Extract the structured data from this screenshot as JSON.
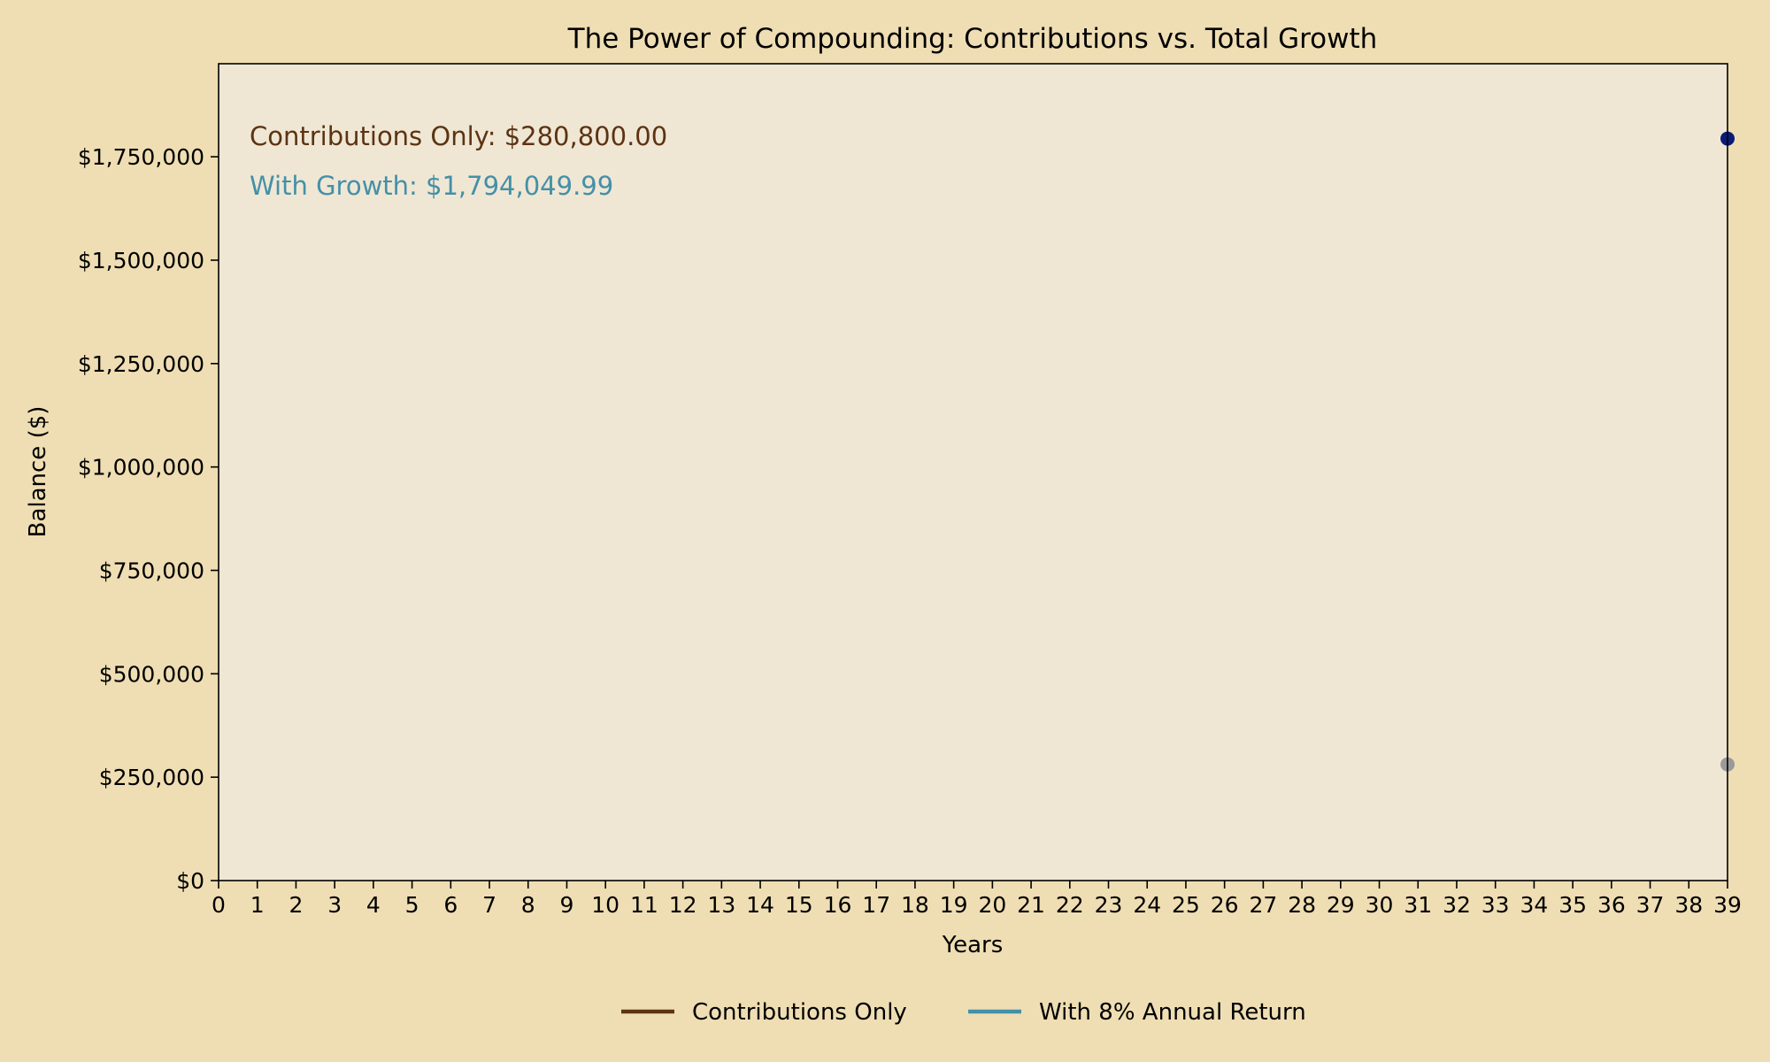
{
  "chart_data": {
    "type": "line",
    "title": "The Power of Compounding: Contributions vs. Total Growth",
    "xlabel": "Years",
    "ylabel": "Balance ($)",
    "xlim": [
      0,
      39
    ],
    "ylim": [
      0,
      1975000
    ],
    "x_ticks": [
      0,
      1,
      2,
      3,
      4,
      5,
      6,
      7,
      8,
      9,
      10,
      11,
      12,
      13,
      14,
      15,
      16,
      17,
      18,
      19,
      20,
      21,
      22,
      23,
      24,
      25,
      26,
      27,
      28,
      29,
      30,
      31,
      32,
      33,
      34,
      35,
      36,
      37,
      38,
      39
    ],
    "y_ticks": [
      {
        "value": 0,
        "label": "$0"
      },
      {
        "value": 250000,
        "label": "$250,000"
      },
      {
        "value": 500000,
        "label": "$500,000"
      },
      {
        "value": 750000,
        "label": "$750,000"
      },
      {
        "value": 1000000,
        "label": "$1,000,000"
      },
      {
        "value": 1250000,
        "label": "$1,250,000"
      },
      {
        "value": 1500000,
        "label": "$1,500,000"
      },
      {
        "value": 1750000,
        "label": "$1,750,000"
      }
    ],
    "grid": false,
    "legend_position": "bottom-center",
    "series": [
      {
        "name": "Contributions Only",
        "color": "#5c3414",
        "marker_color": "#9a9a9a",
        "x": [
          39
        ],
        "values": [
          280800
        ]
      },
      {
        "name": "With 8% Annual Return",
        "color": "#4490a8",
        "marker_color": "#0b1a78",
        "x": [
          39
        ],
        "values": [
          1794049.99
        ]
      }
    ],
    "annotations": [
      {
        "text": "Contributions Only: $280,800.00",
        "color": "#5c3414"
      },
      {
        "text": "With Growth: $1,794,049.99",
        "color": "#4490a8"
      }
    ],
    "colors": {
      "figure_background": "#efdeb3",
      "plot_background": "#efe6d4"
    }
  }
}
